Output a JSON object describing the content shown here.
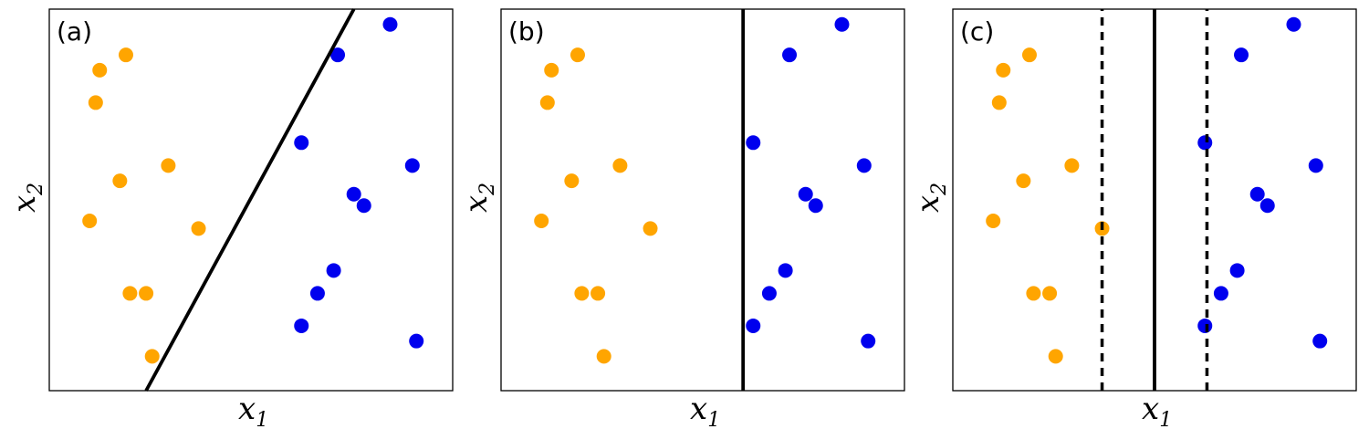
{
  "colors": {
    "class_a": "#ffa500",
    "class_b": "#0000ee",
    "line": "#000000"
  },
  "chart_data": [
    {
      "type": "scatter",
      "panel_label": "(a)",
      "xlabel": "x",
      "xlabel_sub": "1",
      "ylabel": "x",
      "ylabel_sub": "2",
      "xlim": [
        0,
        10
      ],
      "ylim": [
        0,
        10
      ],
      "grid": false,
      "series": [
        {
          "color": "orange",
          "points": [
            [
              1.25,
              8.4
            ],
            [
              1.9,
              8.8
            ],
            [
              1.15,
              7.55
            ],
            [
              2.95,
              5.9
            ],
            [
              1.75,
              5.5
            ],
            [
              1.0,
              4.45
            ],
            [
              3.7,
              4.25
            ],
            [
              2.0,
              2.55
            ],
            [
              2.4,
              2.55
            ],
            [
              2.55,
              0.9
            ]
          ]
        },
        {
          "color": "blue",
          "points": [
            [
              8.45,
              9.6
            ],
            [
              7.15,
              8.8
            ],
            [
              6.25,
              6.5
            ],
            [
              9.0,
              5.9
            ],
            [
              7.55,
              5.15
            ],
            [
              7.8,
              4.85
            ],
            [
              7.05,
              3.15
            ],
            [
              6.65,
              2.55
            ],
            [
              6.25,
              1.7
            ],
            [
              9.1,
              1.3
            ]
          ]
        }
      ],
      "boundary": {
        "kind": "solid",
        "from": [
          2.4,
          0
        ],
        "to": [
          7.55,
          10
        ]
      }
    },
    {
      "type": "scatter",
      "panel_label": "(b)",
      "xlabel": "x",
      "xlabel_sub": "1",
      "ylabel": "x",
      "ylabel_sub": "2",
      "xlim": [
        0,
        10
      ],
      "ylim": [
        0,
        10
      ],
      "grid": false,
      "series": [
        {
          "color": "orange",
          "points": [
            [
              1.25,
              8.4
            ],
            [
              1.9,
              8.8
            ],
            [
              1.15,
              7.55
            ],
            [
              2.95,
              5.9
            ],
            [
              1.75,
              5.5
            ],
            [
              1.0,
              4.45
            ],
            [
              3.7,
              4.25
            ],
            [
              2.0,
              2.55
            ],
            [
              2.4,
              2.55
            ],
            [
              2.55,
              0.9
            ]
          ]
        },
        {
          "color": "blue",
          "points": [
            [
              8.45,
              9.6
            ],
            [
              7.15,
              8.8
            ],
            [
              6.25,
              6.5
            ],
            [
              9.0,
              5.9
            ],
            [
              7.55,
              5.15
            ],
            [
              7.8,
              4.85
            ],
            [
              7.05,
              3.15
            ],
            [
              6.65,
              2.55
            ],
            [
              6.25,
              1.7
            ],
            [
              9.1,
              1.3
            ]
          ]
        }
      ],
      "boundary": {
        "kind": "solid",
        "from": [
          6.0,
          0
        ],
        "to": [
          6.0,
          10
        ]
      }
    },
    {
      "type": "scatter",
      "panel_label": "(c)",
      "xlabel": "x",
      "xlabel_sub": "1",
      "ylabel": "x",
      "ylabel_sub": "2",
      "xlim": [
        0,
        10
      ],
      "ylim": [
        0,
        10
      ],
      "grid": false,
      "series": [
        {
          "color": "orange",
          "points": [
            [
              1.25,
              8.4
            ],
            [
              1.9,
              8.8
            ],
            [
              1.15,
              7.55
            ],
            [
              2.95,
              5.9
            ],
            [
              1.75,
              5.5
            ],
            [
              1.0,
              4.45
            ],
            [
              3.7,
              4.25
            ],
            [
              2.0,
              2.55
            ],
            [
              2.4,
              2.55
            ],
            [
              2.55,
              0.9
            ]
          ]
        },
        {
          "color": "blue",
          "points": [
            [
              8.45,
              9.6
            ],
            [
              7.15,
              8.8
            ],
            [
              6.25,
              6.5
            ],
            [
              9.0,
              5.9
            ],
            [
              7.55,
              5.15
            ],
            [
              7.8,
              4.85
            ],
            [
              7.05,
              3.15
            ],
            [
              6.65,
              2.55
            ],
            [
              6.25,
              1.7
            ],
            [
              9.1,
              1.3
            ]
          ]
        }
      ],
      "boundary": {
        "kind": "solid",
        "from": [
          5.0,
          0
        ],
        "to": [
          5.0,
          10
        ]
      },
      "margins": [
        {
          "kind": "dashed",
          "from": [
            3.7,
            0
          ],
          "to": [
            3.7,
            10
          ]
        },
        {
          "kind": "dashed",
          "from": [
            6.3,
            0
          ],
          "to": [
            6.3,
            10
          ]
        }
      ]
    }
  ]
}
